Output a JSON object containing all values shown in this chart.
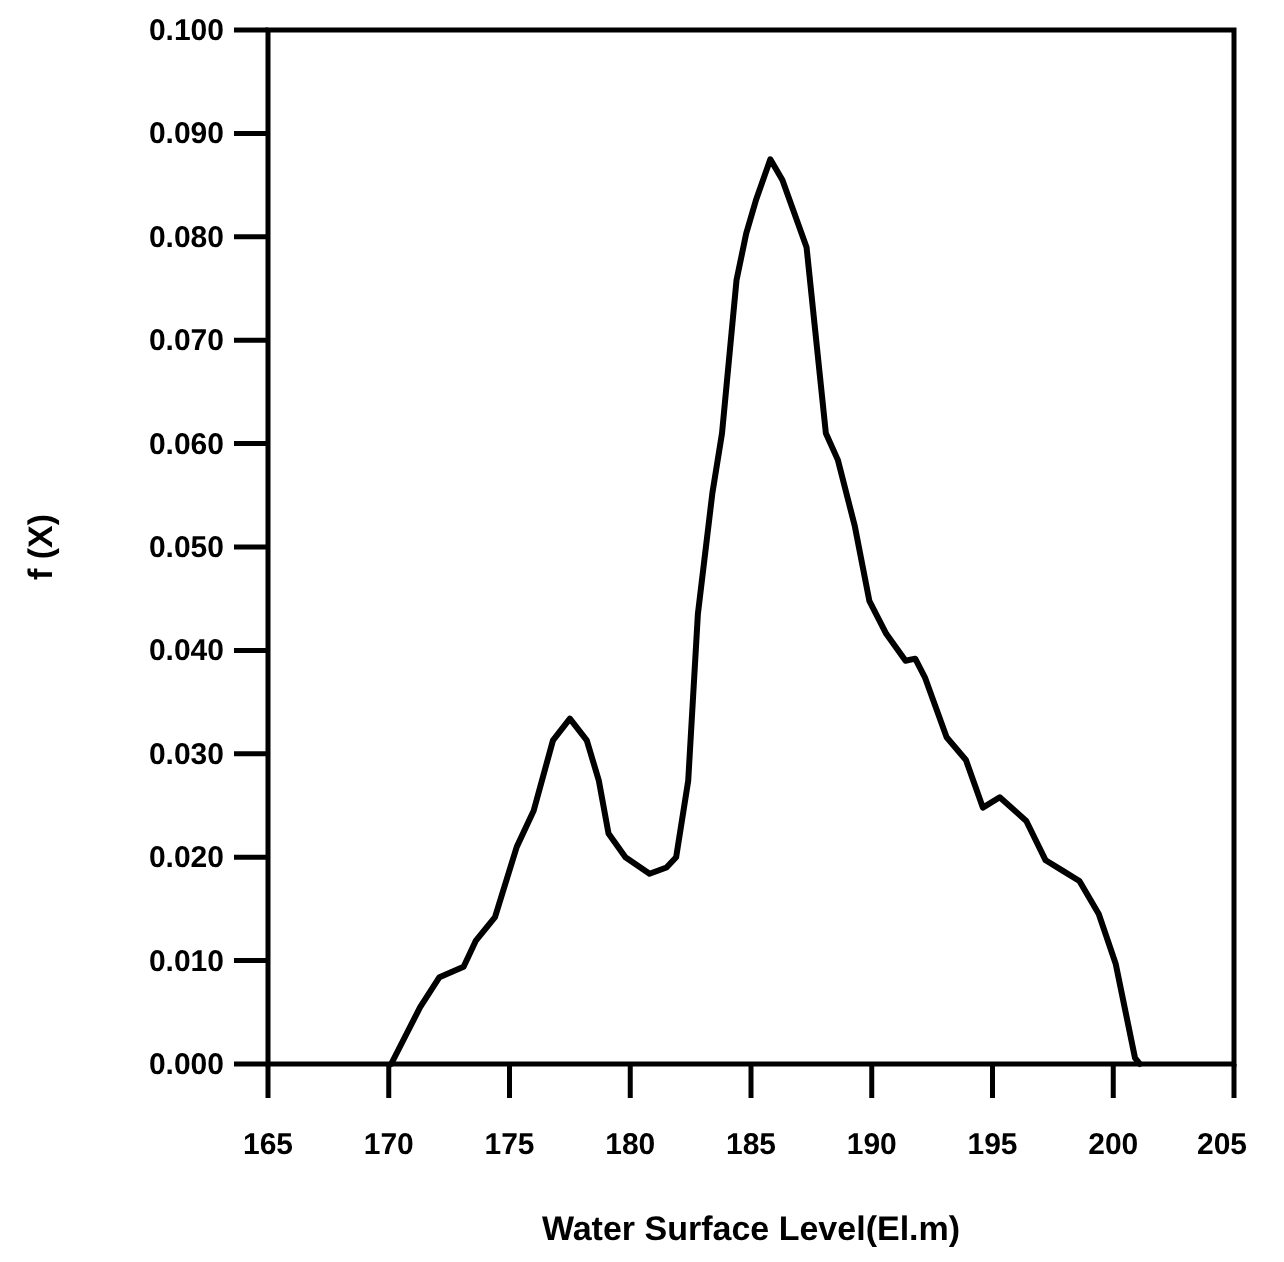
{
  "chart_data": {
    "type": "line",
    "xlabel": "Water Surface Level(El.m)",
    "ylabel": "f (X)",
    "xlim": [
      165,
      205
    ],
    "xticks": [
      165,
      170,
      175,
      180,
      185,
      190,
      195,
      200,
      205
    ],
    "ylim": [
      0,
      0.1
    ],
    "yticks": [
      {
        "value": 0,
        "label": "0.000"
      },
      {
        "value": 0.01,
        "label": "0.010"
      },
      {
        "value": 0.02,
        "label": "0.020"
      },
      {
        "value": 0.03,
        "label": "0.030"
      },
      {
        "value": 0.04,
        "label": "0.040"
      },
      {
        "value": 0.05,
        "label": "0.050"
      },
      {
        "value": 0.06,
        "label": "0.060"
      },
      {
        "value": 0.07,
        "label": "0.070"
      },
      {
        "value": 0.08,
        "label": "0.080"
      },
      {
        "value": 0.09,
        "label": "0.090"
      },
      {
        "value": 0.1,
        "label": "0.100"
      }
    ],
    "grid": false,
    "marker": "none",
    "line_style": "solid",
    "series": [
      {
        "color": "#000000",
        "x": [
          170.1,
          171.3,
          172.1,
          173.1,
          173.6,
          174.4,
          175.3,
          176.0,
          176.8,
          177.5,
          178.2,
          178.7,
          179.1,
          179.8,
          180.8,
          181.5,
          181.9,
          182.4,
          182.8,
          183.4,
          183.8,
          184.4,
          184.8,
          185.2,
          185.8,
          186.3,
          187.3,
          188.1,
          188.6,
          189.3,
          189.9,
          190.6,
          191.4,
          191.8,
          192.2,
          193.1,
          193.9,
          194.6,
          195.3,
          196.4,
          197.2,
          197.9,
          198.6,
          199.4,
          200.1,
          200.9,
          201.1
        ],
        "values": [
          0,
          0.0055,
          0.0084,
          0.0094,
          0.0119,
          0.0142,
          0.021,
          0.0245,
          0.0313,
          0.0334,
          0.0313,
          0.0274,
          0.0223,
          0.02,
          0.0184,
          0.019,
          0.02,
          0.0274,
          0.0435,
          0.0552,
          0.061,
          0.0758,
          0.0803,
          0.0835,
          0.0875,
          0.0855,
          0.079,
          0.061,
          0.0584,
          0.052,
          0.0448,
          0.0416,
          0.039,
          0.0392,
          0.0374,
          0.0316,
          0.0294,
          0.0248,
          0.0258,
          0.0235,
          0.0197,
          0.0187,
          0.0177,
          0.0145,
          0.0097,
          0.0006,
          0
        ]
      }
    ]
  }
}
